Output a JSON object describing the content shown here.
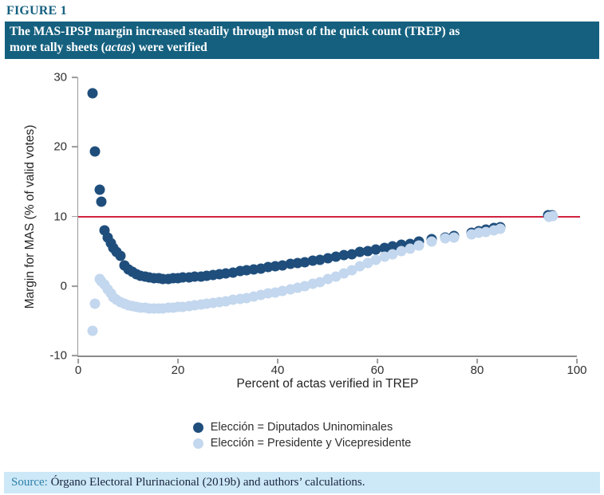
{
  "figure_label": "FIGURE 1",
  "banner": {
    "background": "#15607f",
    "line1": "The MAS-IPSP margin increased steadily through most of the quick count (TREP) as",
    "line2_before": "more tally sheets (",
    "line2_italic": "actas",
    "line2_after": ") were verified"
  },
  "source": {
    "background": "#cde8f7",
    "label": "Source:",
    "text": " Órgano Electoral Plurinacional (2019b) and authors’ calculations."
  },
  "chart_data": {
    "type": "scatter",
    "title": "",
    "xlabel": "Percent of actas verified in TREP",
    "ylabel": "Margin for MAS (% of valid votes)",
    "xlim": [
      0,
      100
    ],
    "ylim": [
      -10,
      30
    ],
    "x_ticks": [
      0,
      20,
      40,
      60,
      80,
      100
    ],
    "y_ticks": [
      30,
      20,
      10,
      0,
      -10
    ],
    "grid": false,
    "legend_position": "bottom-center",
    "reference_line": {
      "y": 10,
      "color": "#d02340"
    },
    "series": [
      {
        "id": "diputados",
        "name": "Elección = Diputados Uninominales",
        "color": "#1f4e7c",
        "x": [
          2.9,
          3.4,
          4.3,
          4.7,
          5.3,
          5.9,
          6.5,
          7.1,
          7.7,
          8.4,
          9.2,
          10.0,
          10.8,
          11.6,
          12.5,
          13.4,
          14.3,
          15.2,
          16.1,
          17.0,
          18.0,
          19.0,
          20.0,
          21.0,
          22.2,
          23.4,
          24.6,
          25.8,
          27.0,
          28.3,
          29.6,
          31.0,
          32.4,
          33.8,
          35.2,
          36.6,
          38.0,
          39.5,
          41.0,
          42.5,
          44.0,
          45.5,
          47.0,
          48.5,
          50.0,
          51.6,
          53.2,
          54.8,
          56.4,
          58.0,
          59.7,
          61.4,
          63.1,
          64.8,
          66.5,
          68.3,
          70.9,
          73.6,
          75.3,
          78.8,
          80.3,
          81.8,
          83.3,
          84.6,
          94.3,
          95.1
        ],
        "values": [
          27.7,
          19.3,
          13.8,
          12.1,
          8.0,
          7.0,
          6.2,
          5.5,
          4.9,
          4.3,
          2.9,
          2.4,
          2.0,
          1.7,
          1.5,
          1.35,
          1.25,
          1.15,
          1.1,
          1.05,
          1.05,
          1.1,
          1.15,
          1.2,
          1.25,
          1.3,
          1.4,
          1.5,
          1.6,
          1.7,
          1.8,
          1.95,
          2.1,
          2.25,
          2.4,
          2.55,
          2.7,
          2.85,
          3.0,
          3.15,
          3.3,
          3.45,
          3.6,
          3.8,
          4.0,
          4.2,
          4.4,
          4.6,
          4.85,
          5.05,
          5.3,
          5.5,
          5.7,
          5.9,
          6.1,
          6.35,
          6.7,
          7.0,
          7.2,
          7.7,
          7.9,
          8.1,
          8.3,
          8.45,
          10.15,
          10.2
        ]
      },
      {
        "id": "presidente",
        "name": "Elección = Presidente y Vicepresidente",
        "color": "#c3d7ee",
        "x": [
          2.9,
          3.4,
          4.3,
          4.7,
          5.3,
          5.9,
          6.5,
          7.1,
          7.7,
          8.4,
          9.2,
          10.0,
          10.8,
          11.6,
          12.5,
          13.4,
          14.3,
          15.2,
          16.1,
          17.0,
          18.0,
          19.0,
          20.0,
          21.0,
          22.2,
          23.4,
          24.6,
          25.8,
          27.0,
          28.3,
          29.6,
          31.0,
          32.4,
          33.8,
          35.2,
          36.6,
          38.0,
          39.5,
          41.0,
          42.5,
          44.0,
          45.5,
          47.0,
          48.5,
          50.0,
          51.6,
          53.2,
          54.8,
          56.4,
          58.0,
          59.7,
          61.4,
          63.1,
          64.8,
          66.5,
          68.3,
          70.9,
          73.6,
          75.3,
          78.8,
          80.3,
          81.8,
          83.3,
          84.6,
          94.4,
          95.2
        ],
        "values": [
          -6.4,
          -2.5,
          1.0,
          0.7,
          0.2,
          -0.5,
          -1.1,
          -1.6,
          -2.0,
          -2.3,
          -2.55,
          -2.75,
          -2.9,
          -3.0,
          -3.1,
          -3.15,
          -3.2,
          -3.2,
          -3.2,
          -3.2,
          -3.15,
          -3.1,
          -3.05,
          -3.0,
          -2.9,
          -2.8,
          -2.7,
          -2.6,
          -2.45,
          -2.3,
          -2.15,
          -2.0,
          -1.85,
          -1.7,
          -1.5,
          -1.3,
          -1.1,
          -0.9,
          -0.7,
          -0.5,
          -0.3,
          -0.05,
          0.3,
          0.6,
          1.0,
          1.4,
          1.8,
          2.3,
          2.8,
          3.3,
          3.8,
          4.2,
          4.6,
          5.0,
          5.4,
          5.8,
          6.4,
          6.8,
          7.0,
          7.4,
          7.6,
          7.8,
          8.0,
          8.2,
          10.0,
          10.1
        ]
      }
    ]
  }
}
